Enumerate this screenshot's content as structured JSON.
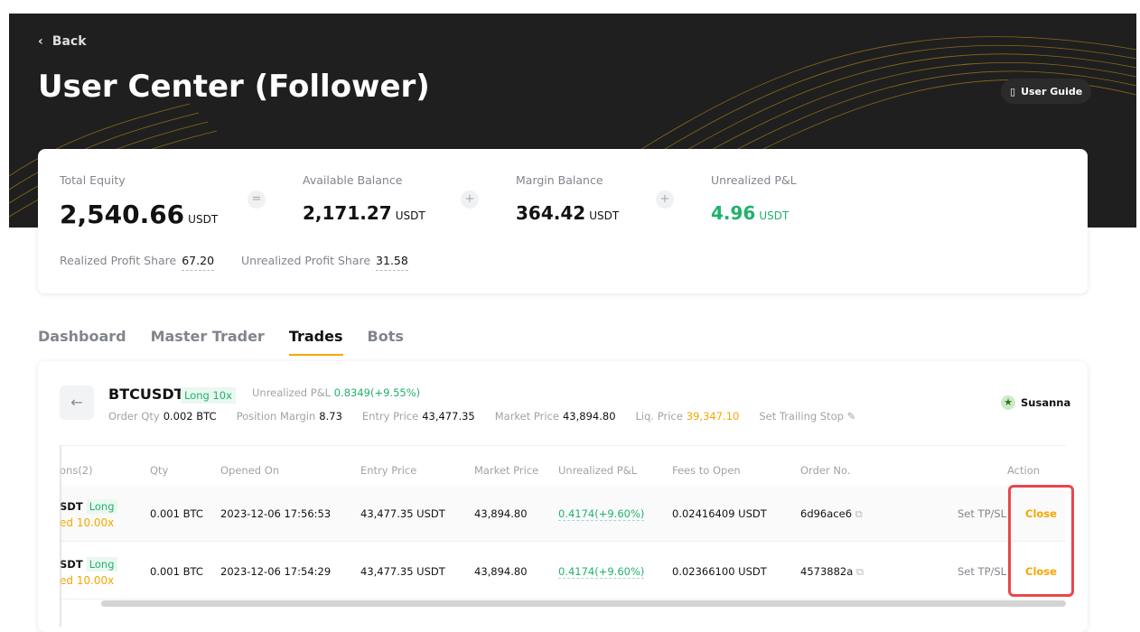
{
  "header": {
    "back_label": "Back",
    "title": "User Center (Follower)",
    "user_guide_label": "User Guide"
  },
  "summary": {
    "total_equity": {
      "label": "Total Equity",
      "value": "2,540.66",
      "unit": "USDT"
    },
    "available_balance": {
      "label": "Available Balance",
      "value": "2,171.27",
      "unit": "USDT"
    },
    "margin_balance": {
      "label": "Margin Balance",
      "value": "364.42",
      "unit": "USDT"
    },
    "unrealized_pnl": {
      "label": "Unrealized P&L",
      "value": "4.96",
      "unit": "USDT"
    },
    "op_equals": "=",
    "op_plus": "+",
    "realized_profit_share": {
      "label": "Realized Profit Share",
      "value": "67.20"
    },
    "unrealized_profit_share": {
      "label": "Unrealized Profit Share",
      "value": "31.58"
    }
  },
  "tabs": [
    {
      "label": "Dashboard"
    },
    {
      "label": "Master Trader"
    },
    {
      "label": "Trades",
      "active": true
    },
    {
      "label": "Bots"
    }
  ],
  "position": {
    "symbol": "BTCUSDT",
    "tag": "Long 10x",
    "upl_label": "Unrealized P&L",
    "upl_value": "0.8349(+9.55%)",
    "order_qty_label": "Order Qty",
    "order_qty": "0.002 BTC",
    "position_margin_label": "Position Margin",
    "position_margin": "8.73",
    "entry_price_label": "Entry Price",
    "entry_price": "43,477.35",
    "market_price_label": "Market Price",
    "market_price": "43,894.80",
    "liq_price_label": "Liq. Price",
    "liq_price": "39,347.10",
    "trailing_stop_label": "Set Trailing Stop",
    "trader": "Susanna"
  },
  "table": {
    "columns": [
      "ons(2)",
      "Qty",
      "Opened On",
      "Entry Price",
      "Market Price",
      "Unrealized P&L",
      "Fees to Open",
      "Order No.",
      "Action"
    ],
    "rows": [
      {
        "pair": "SDT",
        "side": "Long",
        "leverage": "ed 10.00x",
        "qty": "0.001 BTC",
        "opened": "2023-12-06 17:56:53",
        "entry": "43,477.35 USDT",
        "market": "43,894.80",
        "upl": "0.4174(+9.60%)",
        "fees": "0.02416409 USDT",
        "order": "6d96ace6",
        "tpsl": "Set TP/SL",
        "close": "Close"
      },
      {
        "pair": "SDT",
        "side": "Long",
        "leverage": "ed 10.00x",
        "qty": "0.001 BTC",
        "opened": "2023-12-06 17:54:29",
        "entry": "43,477.35 USDT",
        "market": "43,894.80",
        "upl": "0.4174(+9.60%)",
        "fees": "0.02366100 USDT",
        "order": "4573882a",
        "tpsl": "Set TP/SL",
        "close": "Close"
      }
    ]
  },
  "colors": {
    "accent": "#f7a600",
    "profit": "#20b26c",
    "highlight": "#e8474b",
    "hero_bg": "#1f1f1f"
  }
}
